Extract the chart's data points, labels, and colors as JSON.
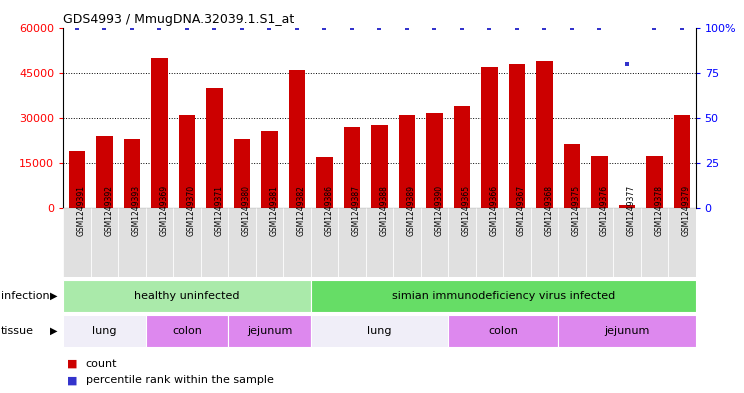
{
  "title": "GDS4993 / MmugDNA.32039.1.S1_at",
  "samples": [
    "GSM1249391",
    "GSM1249392",
    "GSM1249393",
    "GSM1249369",
    "GSM1249370",
    "GSM1249371",
    "GSM1249380",
    "GSM1249381",
    "GSM1249382",
    "GSM1249386",
    "GSM1249387",
    "GSM1249388",
    "GSM1249389",
    "GSM1249390",
    "GSM1249365",
    "GSM1249366",
    "GSM1249367",
    "GSM1249368",
    "GSM1249375",
    "GSM1249376",
    "GSM1249377",
    "GSM1249378",
    "GSM1249379"
  ],
  "counts": [
    19000,
    24000,
    23000,
    50000,
    31000,
    40000,
    23000,
    25500,
    46000,
    17000,
    27000,
    27500,
    31000,
    31500,
    34000,
    47000,
    48000,
    49000,
    21500,
    17500,
    1000,
    17500,
    31000
  ],
  "percentiles": [
    100,
    100,
    100,
    100,
    100,
    100,
    100,
    100,
    100,
    100,
    100,
    100,
    100,
    100,
    100,
    100,
    100,
    100,
    100,
    100,
    80,
    100,
    100
  ],
  "bar_color": "#cc0000",
  "dot_color": "#3333cc",
  "ylim_left": [
    0,
    60000
  ],
  "ylim_right": [
    0,
    100
  ],
  "yticks_left": [
    0,
    15000,
    30000,
    45000,
    60000
  ],
  "yticks_right": [
    0,
    25,
    50,
    75,
    100
  ],
  "infection_groups": [
    {
      "label": "healthy uninfected",
      "start": 0,
      "end": 9,
      "color": "#aaeaaa"
    },
    {
      "label": "simian immunodeficiency virus infected",
      "start": 9,
      "end": 23,
      "color": "#66dd66"
    }
  ],
  "tissue_groups": [
    {
      "label": "lung",
      "start": 0,
      "end": 3,
      "color": "#f0eef8"
    },
    {
      "label": "colon",
      "start": 3,
      "end": 6,
      "color": "#dd88ee"
    },
    {
      "label": "jejunum",
      "start": 6,
      "end": 9,
      "color": "#dd88ee"
    },
    {
      "label": "lung",
      "start": 9,
      "end": 14,
      "color": "#f0eef8"
    },
    {
      "label": "colon",
      "start": 14,
      "end": 18,
      "color": "#dd88ee"
    },
    {
      "label": "jejunum",
      "start": 18,
      "end": 23,
      "color": "#dd88ee"
    }
  ],
  "infection_label": "infection",
  "tissue_label": "tissue",
  "xtick_bg": "#e0e0e0"
}
